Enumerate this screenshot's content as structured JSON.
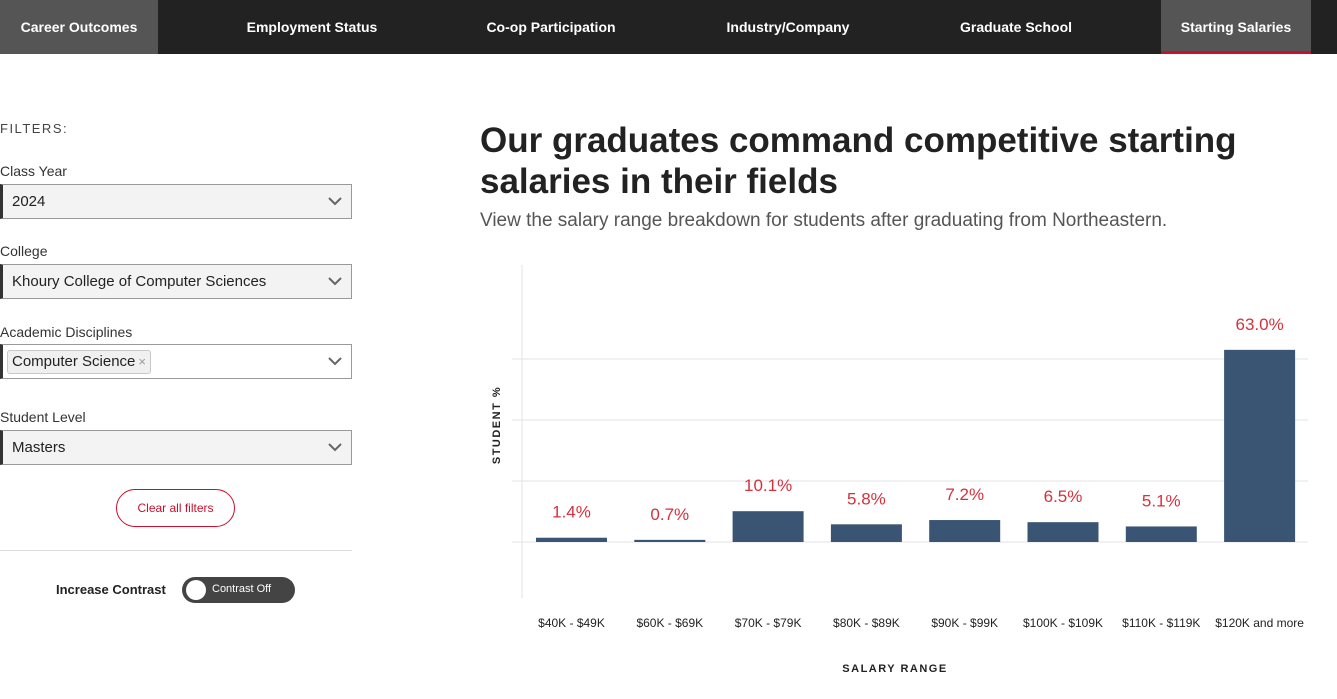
{
  "nav": {
    "tabs": [
      {
        "label": "Career Outcomes"
      },
      {
        "label": "Employment Status"
      },
      {
        "label": "Co-op Participation"
      },
      {
        "label": "Industry/Company"
      },
      {
        "label": "Graduate School"
      },
      {
        "label": "Starting Salaries"
      }
    ]
  },
  "filters": {
    "heading": "FILTERS:",
    "class_year": {
      "label": "Class Year",
      "value": "2024"
    },
    "college": {
      "label": "College",
      "value": "Khoury College of Computer Sciences"
    },
    "academic_disciplines": {
      "label": "Academic Disciplines",
      "chip": "Computer Science",
      "chip_remove": "×"
    },
    "student_level": {
      "label": "Student Level",
      "value": "Masters"
    },
    "clear_label": "Clear all filters"
  },
  "contrast": {
    "label": "Increase Contrast",
    "state": "Contrast Off"
  },
  "main": {
    "headline": "Our graduates command competitive starting salaries in their fields",
    "subhead": "View the salary range breakdown for students after graduating from Northeastern."
  },
  "colors": {
    "bar": "#3a5574",
    "label": "#d6303c",
    "accent": "#c8102e"
  },
  "chart_data": {
    "type": "bar",
    "xlabel": "SALARY RANGE",
    "ylabel": "STUDENT %",
    "categories": [
      "$40K - $49K",
      "$60K - $69K",
      "$70K - $79K",
      "$80K - $89K",
      "$90K - $99K",
      "$100K - $109K",
      "$110K - $119K",
      "$120K and more"
    ],
    "values": [
      1.4,
      0.7,
      10.1,
      5.8,
      7.2,
      6.5,
      5.1,
      63.0
    ],
    "data_labels": [
      "1.4%",
      "0.7%",
      "10.1%",
      "5.8%",
      "7.2%",
      "6.5%",
      "5.1%",
      "63.0%"
    ],
    "ylim": [
      0,
      70
    ],
    "grid": true
  }
}
